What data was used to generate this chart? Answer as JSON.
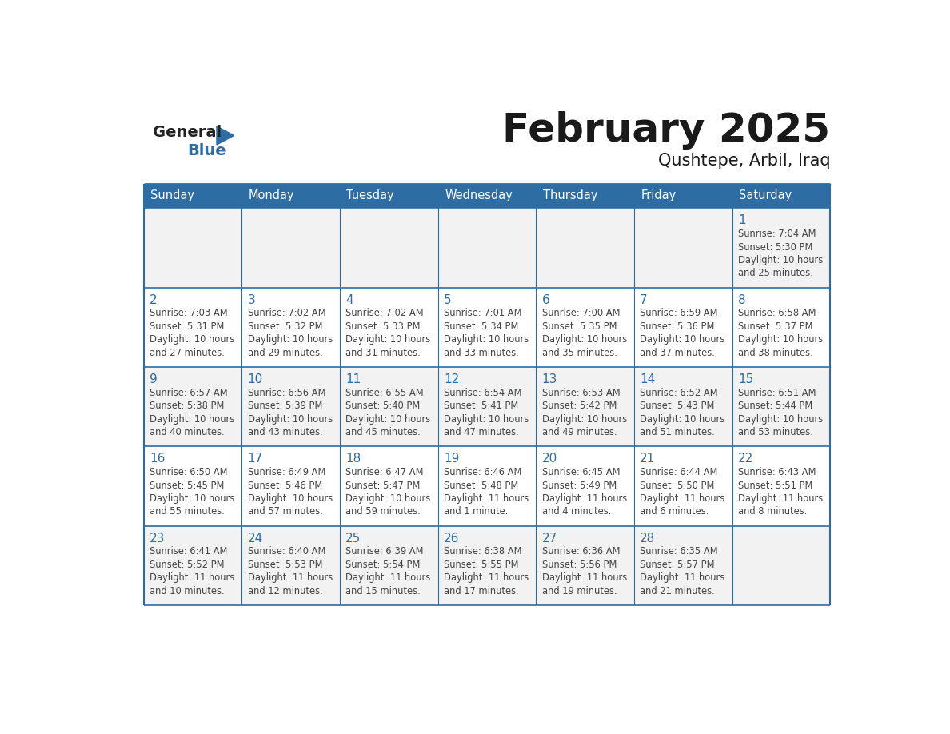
{
  "title": "February 2025",
  "subtitle": "Qushtepe, Arbil, Iraq",
  "days_of_week": [
    "Sunday",
    "Monday",
    "Tuesday",
    "Wednesday",
    "Thursday",
    "Friday",
    "Saturday"
  ],
  "header_bg": "#2E6DA4",
  "header_text": "#FFFFFF",
  "cell_bg_alt": "#F2F2F2",
  "cell_bg_white": "#FFFFFF",
  "cell_border": "#2E6DA4",
  "day_num_color": "#2E6DA4",
  "info_color": "#444444",
  "title_color": "#1a1a1a",
  "logo_general_color": "#222222",
  "logo_blue_color": "#2E6DA4",
  "calendar": [
    [
      null,
      null,
      null,
      null,
      null,
      null,
      {
        "day": 1,
        "sunrise": "7:04 AM",
        "sunset": "5:30 PM",
        "daylight": "10 hours and 25 minutes."
      }
    ],
    [
      {
        "day": 2,
        "sunrise": "7:03 AM",
        "sunset": "5:31 PM",
        "daylight": "10 hours and 27 minutes."
      },
      {
        "day": 3,
        "sunrise": "7:02 AM",
        "sunset": "5:32 PM",
        "daylight": "10 hours and 29 minutes."
      },
      {
        "day": 4,
        "sunrise": "7:02 AM",
        "sunset": "5:33 PM",
        "daylight": "10 hours and 31 minutes."
      },
      {
        "day": 5,
        "sunrise": "7:01 AM",
        "sunset": "5:34 PM",
        "daylight": "10 hours and 33 minutes."
      },
      {
        "day": 6,
        "sunrise": "7:00 AM",
        "sunset": "5:35 PM",
        "daylight": "10 hours and 35 minutes."
      },
      {
        "day": 7,
        "sunrise": "6:59 AM",
        "sunset": "5:36 PM",
        "daylight": "10 hours and 37 minutes."
      },
      {
        "day": 8,
        "sunrise": "6:58 AM",
        "sunset": "5:37 PM",
        "daylight": "10 hours and 38 minutes."
      }
    ],
    [
      {
        "day": 9,
        "sunrise": "6:57 AM",
        "sunset": "5:38 PM",
        "daylight": "10 hours and 40 minutes."
      },
      {
        "day": 10,
        "sunrise": "6:56 AM",
        "sunset": "5:39 PM",
        "daylight": "10 hours and 43 minutes."
      },
      {
        "day": 11,
        "sunrise": "6:55 AM",
        "sunset": "5:40 PM",
        "daylight": "10 hours and 45 minutes."
      },
      {
        "day": 12,
        "sunrise": "6:54 AM",
        "sunset": "5:41 PM",
        "daylight": "10 hours and 47 minutes."
      },
      {
        "day": 13,
        "sunrise": "6:53 AM",
        "sunset": "5:42 PM",
        "daylight": "10 hours and 49 minutes."
      },
      {
        "day": 14,
        "sunrise": "6:52 AM",
        "sunset": "5:43 PM",
        "daylight": "10 hours and 51 minutes."
      },
      {
        "day": 15,
        "sunrise": "6:51 AM",
        "sunset": "5:44 PM",
        "daylight": "10 hours and 53 minutes."
      }
    ],
    [
      {
        "day": 16,
        "sunrise": "6:50 AM",
        "sunset": "5:45 PM",
        "daylight": "10 hours and 55 minutes."
      },
      {
        "day": 17,
        "sunrise": "6:49 AM",
        "sunset": "5:46 PM",
        "daylight": "10 hours and 57 minutes."
      },
      {
        "day": 18,
        "sunrise": "6:47 AM",
        "sunset": "5:47 PM",
        "daylight": "10 hours and 59 minutes."
      },
      {
        "day": 19,
        "sunrise": "6:46 AM",
        "sunset": "5:48 PM",
        "daylight": "11 hours and 1 minute."
      },
      {
        "day": 20,
        "sunrise": "6:45 AM",
        "sunset": "5:49 PM",
        "daylight": "11 hours and 4 minutes."
      },
      {
        "day": 21,
        "sunrise": "6:44 AM",
        "sunset": "5:50 PM",
        "daylight": "11 hours and 6 minutes."
      },
      {
        "day": 22,
        "sunrise": "6:43 AM",
        "sunset": "5:51 PM",
        "daylight": "11 hours and 8 minutes."
      }
    ],
    [
      {
        "day": 23,
        "sunrise": "6:41 AM",
        "sunset": "5:52 PM",
        "daylight": "11 hours and 10 minutes."
      },
      {
        "day": 24,
        "sunrise": "6:40 AM",
        "sunset": "5:53 PM",
        "daylight": "11 hours and 12 minutes."
      },
      {
        "day": 25,
        "sunrise": "6:39 AM",
        "sunset": "5:54 PM",
        "daylight": "11 hours and 15 minutes."
      },
      {
        "day": 26,
        "sunrise": "6:38 AM",
        "sunset": "5:55 PM",
        "daylight": "11 hours and 17 minutes."
      },
      {
        "day": 27,
        "sunrise": "6:36 AM",
        "sunset": "5:56 PM",
        "daylight": "11 hours and 19 minutes."
      },
      {
        "day": 28,
        "sunrise": "6:35 AM",
        "sunset": "5:57 PM",
        "daylight": "11 hours and 21 minutes."
      },
      null
    ]
  ],
  "row_bg_colors": [
    "#F2F2F2",
    "#FFFFFF",
    "#F2F2F2",
    "#FFFFFF",
    "#F2F2F2"
  ]
}
